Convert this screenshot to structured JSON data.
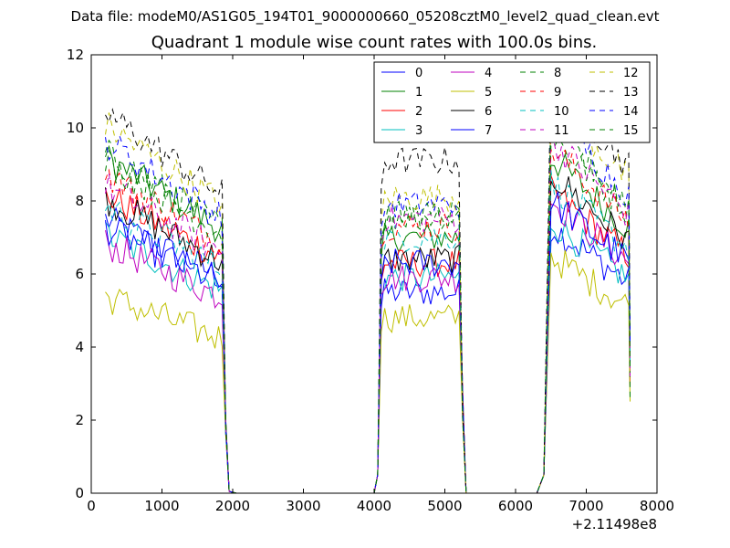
{
  "chart_data": {
    "type": "line",
    "suptitle": "Data file: modeM0/AS1G05_194T01_9000000660_05208cztM0_level2_quad_clean.evt",
    "title": "Quadrant 1 module wise count rates with 100.0s bins.",
    "xlabel": "",
    "ylabel": "",
    "x_offset_label": "+2.11498e8",
    "xlim": [
      0,
      8000
    ],
    "ylim": [
      0,
      12
    ],
    "xticks": [
      0,
      1000,
      2000,
      3000,
      4000,
      5000,
      6000,
      7000,
      8000
    ],
    "yticks": [
      0,
      2,
      4,
      6,
      8,
      10,
      12
    ],
    "legend_position": "top-right",
    "legend_columns": 4,
    "segments": [
      [
        200,
        1850
      ],
      [
        4100,
        5200
      ],
      [
        6500,
        7600
      ]
    ],
    "gap_points": [
      1950,
      2050,
      3000,
      4000,
      5300,
      5400,
      6300,
      6400
    ],
    "series": [
      {
        "name": "0",
        "color": "#0000ff",
        "dash": false,
        "base": [
          6.7,
          5.5,
          6.2
        ]
      },
      {
        "name": "1",
        "color": "#008000",
        "dash": false,
        "base": [
          8.2,
          7.0,
          7.8
        ]
      },
      {
        "name": "2",
        "color": "#ff0000",
        "dash": false,
        "base": [
          7.3,
          6.3,
          7.0
        ]
      },
      {
        "name": "3",
        "color": "#00bfbf",
        "dash": false,
        "base": [
          6.3,
          5.9,
          6.3
        ]
      },
      {
        "name": "4",
        "color": "#bf00bf",
        "dash": false,
        "base": [
          6.1,
          5.9,
          6.8
        ]
      },
      {
        "name": "5",
        "color": "#bfbf00",
        "dash": false,
        "base": [
          4.8,
          4.8,
          5.5
        ]
      },
      {
        "name": "6",
        "color": "#000000",
        "dash": false,
        "base": [
          7.2,
          6.4,
          7.4
        ]
      },
      {
        "name": "7",
        "color": "#0000ff",
        "dash": false,
        "base": [
          6.5,
          6.3,
          6.8
        ]
      },
      {
        "name": "8",
        "color": "#008000",
        "dash": true,
        "base": [
          8.3,
          7.6,
          8.3
        ]
      },
      {
        "name": "9",
        "color": "#ff0000",
        "dash": true,
        "base": [
          7.8,
          7.3,
          8.0
        ]
      },
      {
        "name": "10",
        "color": "#00bfbf",
        "dash": true,
        "base": [
          7.0,
          7.0,
          7.2
        ]
      },
      {
        "name": "11",
        "color": "#bf00bf",
        "dash": true,
        "base": [
          7.5,
          7.5,
          8.2
        ]
      },
      {
        "name": "12",
        "color": "#bfbf00",
        "dash": true,
        "base": [
          9.0,
          8.1,
          9.2
        ]
      },
      {
        "name": "13",
        "color": "#000000",
        "dash": true,
        "base": [
          9.3,
          9.1,
          9.6
        ]
      },
      {
        "name": "14",
        "color": "#0000ff",
        "dash": true,
        "base": [
          8.6,
          7.9,
          8.8
        ]
      },
      {
        "name": "15",
        "color": "#008000",
        "dash": true,
        "base": [
          8.1,
          7.6,
          8.5
        ]
      }
    ]
  }
}
